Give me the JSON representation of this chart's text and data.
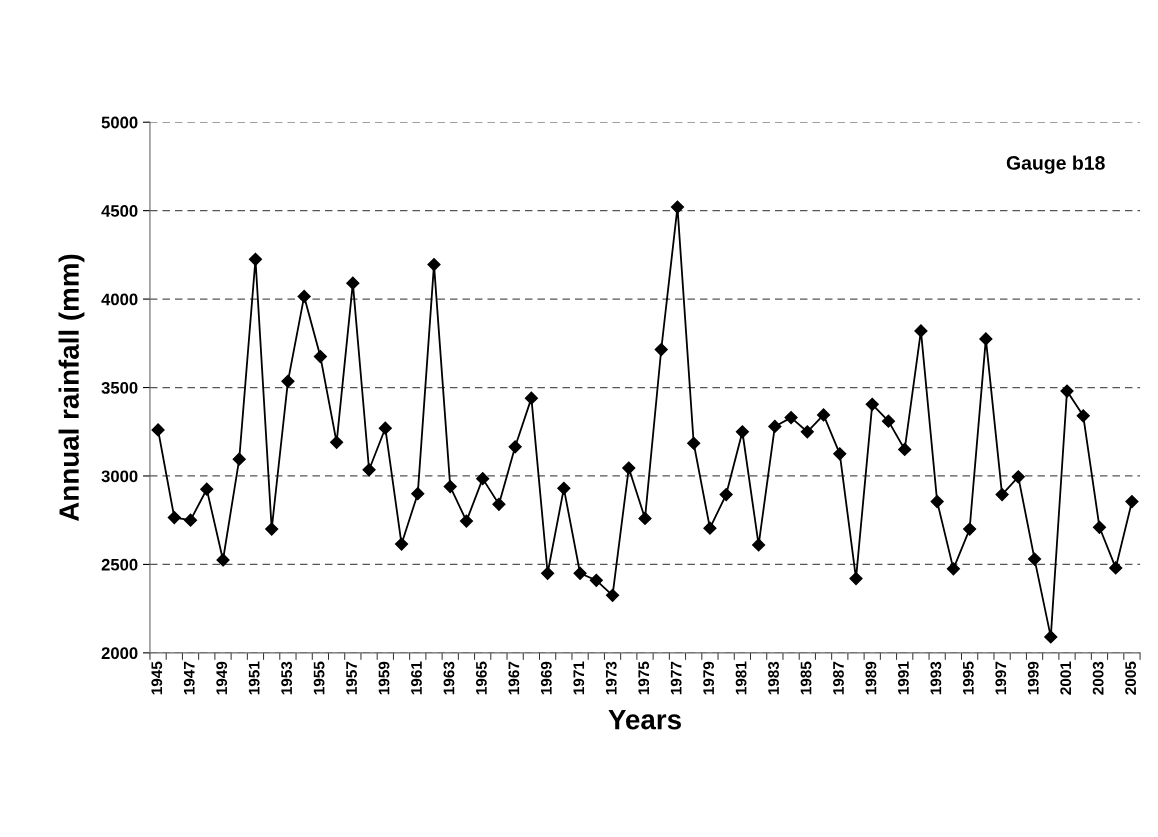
{
  "chart_data": {
    "type": "line",
    "xlabel": "Years",
    "ylabel": "Annual rainfall (mm)",
    "annotations": [
      "Gauge b18"
    ],
    "categories": [
      "1945",
      null,
      "1947",
      null,
      "1949",
      null,
      "1951",
      null,
      "1953",
      null,
      "1955",
      null,
      "1957",
      null,
      "1959",
      null,
      "1961",
      null,
      "1963",
      null,
      "1965",
      null,
      "1967",
      null,
      "1969",
      null,
      "1971",
      null,
      "1973",
      null,
      "1975",
      null,
      "1977",
      null,
      "1979",
      null,
      "1981",
      null,
      "1983",
      null,
      "1985",
      null,
      "1987",
      null,
      "1989",
      null,
      "1991",
      null,
      "1993",
      null,
      "1995",
      null,
      "1997",
      null,
      "1999",
      null,
      "2001",
      null,
      "2003",
      null,
      "2005"
    ],
    "series": [
      {
        "color": "#000000",
        "values": [
          3260,
          2765,
          2750,
          2925,
          2525,
          3095,
          4225,
          2700,
          3535,
          4015,
          3675,
          3190,
          4090,
          3035,
          3270,
          2615,
          2900,
          4195,
          2940,
          2745,
          2985,
          2840,
          3165,
          3440,
          2450,
          2930,
          2450,
          2410,
          2325,
          3045,
          2760,
          3715,
          4520,
          3185,
          2705,
          2895,
          3250,
          2610,
          3280,
          3330,
          3250,
          3345,
          3125,
          2420,
          3405,
          3310,
          3150,
          3820,
          2855,
          2475,
          2700,
          3775,
          2895,
          2995,
          2530,
          2090,
          3480,
          3340,
          2710,
          2480,
          2855
        ]
      }
    ],
    "ylim": [
      2000,
      5000
    ],
    "yticks": [
      2000,
      2500,
      3000,
      3500,
      4000,
      4500,
      5000
    ],
    "grid": "y",
    "marker": "diamond",
    "line_style": "solid"
  }
}
